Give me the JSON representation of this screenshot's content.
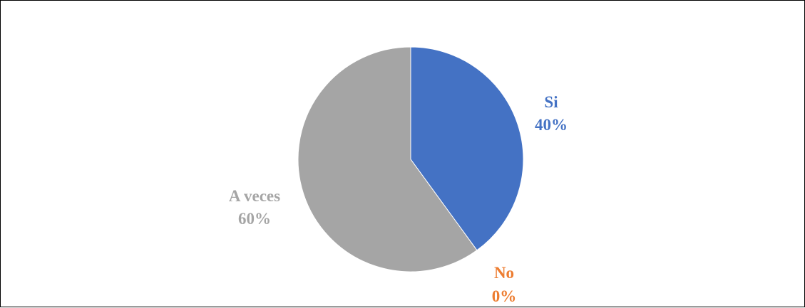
{
  "chart_data": {
    "type": "pie",
    "title": "",
    "categories": [
      "Si",
      "No",
      "A veces"
    ],
    "values": [
      40,
      0,
      60
    ],
    "percent_labels": [
      "40%",
      "0%",
      "60%"
    ],
    "colors": [
      "#4472C4",
      "#ED7D31",
      "#A5A5A5"
    ],
    "start_angle_deg": 0,
    "direction": "clockwise",
    "legend": "none"
  }
}
